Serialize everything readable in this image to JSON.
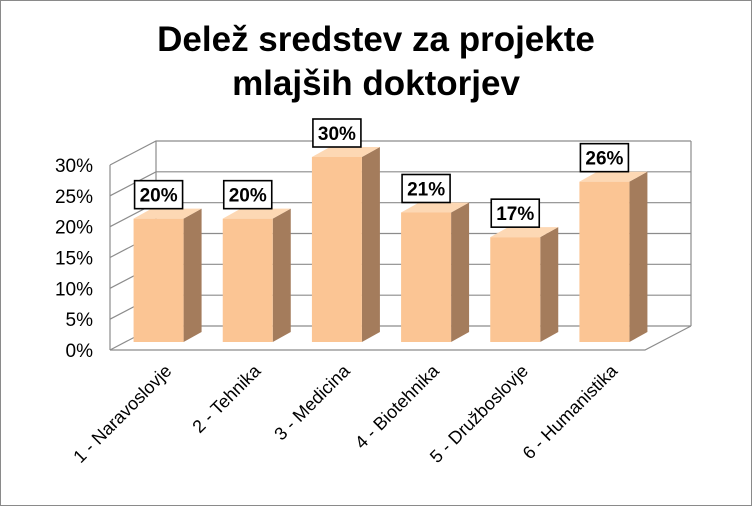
{
  "chart_data": {
    "type": "bar",
    "title_line1": "Delež sredstev za projekte",
    "title_line2": "mlajših doktorjev",
    "categories": [
      "1 - Naravoslovje",
      "2 - Tehnika",
      "3 - Medicina",
      "4 - Biotehnika",
      "5 - Družboslovje",
      "6 - Humanistika"
    ],
    "values": [
      20,
      20,
      30,
      21,
      17,
      26
    ],
    "data_labels": [
      "20%",
      "20%",
      "30%",
      "21%",
      "17%",
      "26%"
    ],
    "y_ticks": [
      "0%",
      "5%",
      "10%",
      "15%",
      "20%",
      "25%",
      "30%"
    ],
    "ylim": [
      0,
      30
    ],
    "three_d": true,
    "gridlines": true,
    "legend": "none",
    "colors": {
      "bar_front": "#fbc594",
      "bar_side": "#a47c5c",
      "bar_top": "#fdd8b4",
      "grid": "#8c8c8c"
    }
  }
}
